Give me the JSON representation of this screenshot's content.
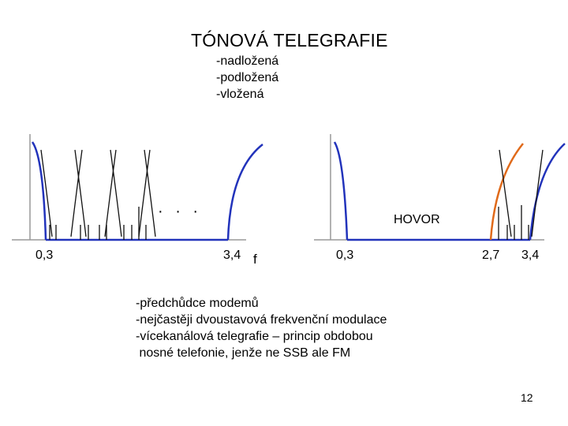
{
  "title": "TÓNOVÁ TELEGRAFIE",
  "types": [
    "-nadložená",
    "-podložená",
    "-vložená"
  ],
  "notes": [
    "-předchůdce modemů",
    "-nejčastěji dvoustavová frekvenční modulace",
    "-vícekanálová telegrafie – princip obdobou",
    " nosné telefonie, jenže ne SSB ale FM"
  ],
  "page_number": "12",
  "diagrams": {
    "left": {
      "tick_labels": [
        "0,3",
        "3,4"
      ],
      "axis_label": "f",
      "ellipsis": "· · ·"
    },
    "right": {
      "tick_labels": [
        "0,3",
        "2,7",
        "3,4"
      ],
      "band_label": "HOVOR"
    }
  },
  "colors": {
    "voice_band": "#2233bb",
    "overlap_channel": "#e06a1a",
    "axes": "#999999",
    "channels": "#111111"
  }
}
